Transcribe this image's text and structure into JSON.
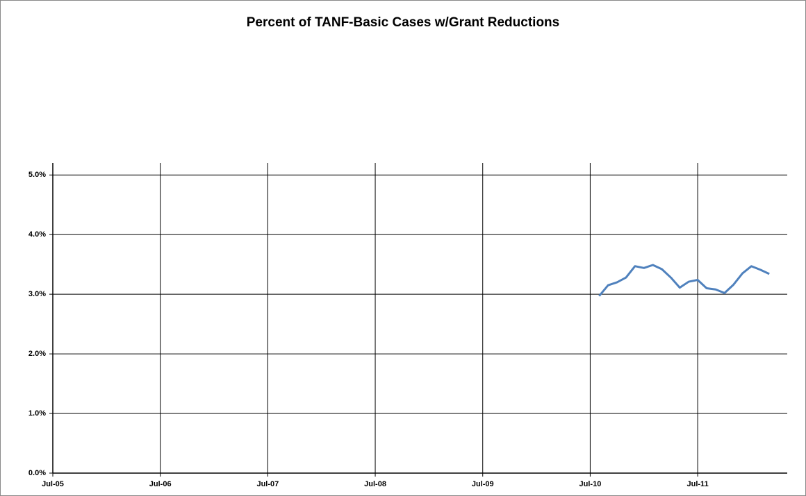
{
  "chart_data": {
    "type": "line",
    "title": "Percent of TANF-Basic Cases w/Grant Reductions",
    "x": [
      "2010-08",
      "2010-09",
      "2010-10",
      "2010-11",
      "2010-12",
      "2011-01",
      "2011-02",
      "2011-03",
      "2011-04",
      "2011-05",
      "2011-06",
      "2011-07",
      "2011-08",
      "2011-09",
      "2011-10",
      "2011-11",
      "2011-12",
      "2012-01",
      "2012-02",
      "2012-03"
    ],
    "series": [
      {
        "name": "TANF-Basic Cases w/Grant Reductions",
        "color": "#4f81bd",
        "values": [
          2.97,
          3.15,
          3.2,
          3.28,
          3.47,
          3.44,
          3.49,
          3.42,
          3.28,
          3.11,
          3.21,
          3.24,
          3.1,
          3.08,
          3.02,
          3.16,
          3.35,
          3.47,
          3.41,
          3.34
        ]
      }
    ],
    "xlim": [
      "2005-07",
      "2012-05"
    ],
    "xticks": [
      {
        "value": "2005-07",
        "label": "Jul-05"
      },
      {
        "value": "2006-07",
        "label": "Jul-06"
      },
      {
        "value": "2007-07",
        "label": "Jul-07"
      },
      {
        "value": "2008-07",
        "label": "Jul-08"
      },
      {
        "value": "2009-07",
        "label": "Jul-09"
      },
      {
        "value": "2010-07",
        "label": "Jul-10"
      },
      {
        "value": "2011-07",
        "label": "Jul-11"
      }
    ],
    "ylim": [
      0,
      5.2
    ],
    "yticks": [
      {
        "value": 0,
        "label": "0.0%"
      },
      {
        "value": 1,
        "label": "1.0%"
      },
      {
        "value": 2,
        "label": "2.0%"
      },
      {
        "value": 3,
        "label": "3.0%"
      },
      {
        "value": 4,
        "label": "4.0%"
      },
      {
        "value": 5,
        "label": "5.0%"
      }
    ],
    "grid": true
  }
}
